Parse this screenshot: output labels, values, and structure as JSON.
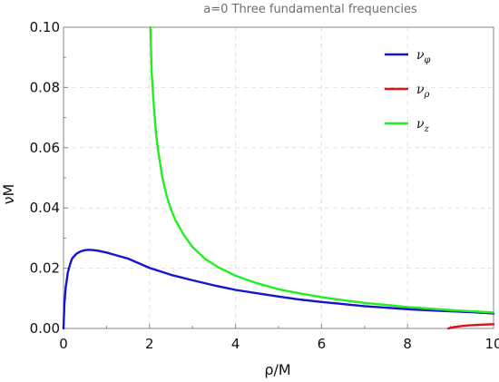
{
  "chart_data": {
    "type": "line",
    "title": "a=0  Three fundamental frequencies",
    "xlabel": "ρ/M",
    "ylabel": "νM",
    "xlim": [
      0,
      10
    ],
    "ylim": [
      0,
      0.1
    ],
    "xticks": [
      0,
      2,
      4,
      6,
      8,
      10
    ],
    "xtick_labels": [
      "0",
      "2",
      "4",
      "6",
      "8",
      "10"
    ],
    "yticks": [
      0,
      0.02,
      0.04,
      0.06,
      0.08,
      0.1
    ],
    "ytick_labels": [
      "0.00",
      "0.02",
      "0.04",
      "0.06",
      "0.08",
      "0.10"
    ],
    "grid": true,
    "legend_position": "top-right",
    "series": [
      {
        "id": "phi",
        "name": "ν",
        "subscript": "φ",
        "color": "#1414d2",
        "x": [
          0.0,
          0.02,
          0.05,
          0.1,
          0.15,
          0.2,
          0.3,
          0.4,
          0.5,
          0.6,
          0.7,
          0.8,
          0.9,
          1.0,
          1.2,
          1.5,
          2.0,
          2.5,
          3.0,
          3.5,
          4.0,
          4.5,
          5.0,
          5.5,
          6.0,
          6.5,
          7.0,
          7.5,
          8.0,
          8.5,
          9.0,
          9.5,
          10.0
        ],
        "y": [
          0.0,
          0.008,
          0.0135,
          0.0185,
          0.0212,
          0.0232,
          0.0248,
          0.0256,
          0.026,
          0.0261,
          0.026,
          0.0258,
          0.0255,
          0.0252,
          0.0244,
          0.0232,
          0.0201,
          0.0178,
          0.016,
          0.0143,
          0.0128,
          0.0117,
          0.0106,
          0.0096,
          0.0088,
          0.0081,
          0.0074,
          0.0069,
          0.0064,
          0.006,
          0.0057,
          0.0054,
          0.005
        ]
      },
      {
        "id": "rho",
        "name": "ν",
        "subscript": "ρ",
        "color": "#e01010",
        "x": [
          8.95,
          9.0,
          9.1,
          9.2,
          9.4,
          9.6,
          9.8,
          10.0
        ],
        "y": [
          0.0,
          0.0002,
          0.0005,
          0.0007,
          0.001,
          0.0012,
          0.0013,
          0.0014
        ]
      },
      {
        "id": "z",
        "name": "ν",
        "subscript": "z",
        "color": "#22ee22",
        "x": [
          2.02,
          2.05,
          2.1,
          2.15,
          2.2,
          2.3,
          2.4,
          2.5,
          2.6,
          2.8,
          3.0,
          3.3,
          3.6,
          4.0,
          4.5,
          5.0,
          5.5,
          6.0,
          6.5,
          7.0,
          7.5,
          8.0,
          8.5,
          9.0,
          9.5,
          10.0
        ],
        "y": [
          0.1,
          0.085,
          0.074,
          0.065,
          0.059,
          0.05,
          0.044,
          0.0395,
          0.036,
          0.031,
          0.027,
          0.023,
          0.0203,
          0.0175,
          0.015,
          0.013,
          0.0116,
          0.0104,
          0.0094,
          0.0085,
          0.0078,
          0.0071,
          0.0066,
          0.0061,
          0.0057,
          0.0053
        ]
      }
    ]
  }
}
